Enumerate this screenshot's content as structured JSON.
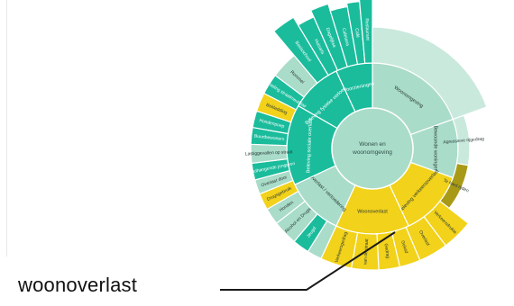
{
  "center": {
    "label_line1": "Wonen en",
    "label_line2": "woonomgeving"
  },
  "callout": {
    "label": "woonoverlast"
  },
  "colors": {
    "teal": "#1abc9c",
    "teal_dark": "#109e82",
    "mint": "#a9dcc9",
    "mint_light": "#c9e9dd",
    "yellow": "#f2d21a",
    "olive": "#a89a16",
    "olive_light": "#d2c676",
    "white": "#ffffff",
    "line": "#1a1a1a"
  },
  "segments": [
    {
      "id": "wijk-level-1",
      "ring": 1,
      "a0": 0,
      "a1": 70,
      "fill": "mint",
      "label": "Woonomgeving",
      "text": "dark"
    },
    {
      "id": "bewoonde-woningen",
      "ring": 1,
      "a0": 70,
      "a1": 110,
      "fill": "mint",
      "label": "Bewoonde woningen",
      "text": "dark"
    },
    {
      "id": "beleving-verkeersoverlast",
      "ring": 1,
      "a0": 110,
      "a1": 155,
      "fill": "yellow",
      "label": "Beleving verkeersoverlast",
      "text": "dark"
    },
    {
      "id": "woonoverlast-level-1",
      "ring": 1,
      "a0": 155,
      "a1": 205,
      "fill": "yellow",
      "label": "Woonoverlast",
      "text": "dark"
    },
    {
      "id": "overlast-verloedering",
      "ring": 1,
      "a0": 205,
      "a1": 245,
      "fill": "mint",
      "label": "Overlast / verloedering",
      "text": "dark"
    },
    {
      "id": "beleving-sociale-overlast",
      "ring": 1,
      "a0": 245,
      "a1": 300,
      "fill": "teal",
      "label": "Beleving sociale overlast",
      "text": "light"
    },
    {
      "id": "beleving-fysieke-verloedering",
      "ring": 1,
      "a0": 300,
      "a1": 335,
      "fill": "teal",
      "label": "Beleving fysieke verloedering",
      "text": "light"
    },
    {
      "id": "voorzieningen",
      "ring": 1,
      "a0": 335,
      "a1": 360,
      "fill": "teal",
      "label": "Voorzieningen",
      "text": "light"
    },
    {
      "id": "agressieve-rijgedrag",
      "ring": 2,
      "a0": 70,
      "a1": 100,
      "fill": "mint_light",
      "label": "Agressieve rijgedrag",
      "text": "dark",
      "outerR": 108
    },
    {
      "id": "te-hard-rijden",
      "ring": 2,
      "a0": 100,
      "a1": 128,
      "fill": "olive",
      "label": "Te hard rijden",
      "text": "dark",
      "outerR": 108
    },
    {
      "id": "verkeersdrukte",
      "ring": 2,
      "a0": 128,
      "a1": 143,
      "fill": "yellow",
      "label": "Verkeersdrukte",
      "text": "dark"
    },
    {
      "id": "overlast-buren",
      "ring": 2,
      "a0": 143,
      "a1": 157,
      "fill": "yellow",
      "label": "Overlast",
      "text": "dark"
    },
    {
      "id": "geluid",
      "ring": 2,
      "a0": 157,
      "a1": 167,
      "fill": "yellow",
      "label": "Geluid",
      "text": "dark"
    },
    {
      "id": "gedrag",
      "ring": 2,
      "a0": 167,
      "a1": 177,
      "fill": "yellow",
      "label": "Gedrag",
      "text": "dark"
    },
    {
      "id": "van-de-straat",
      "ring": 2,
      "a0": 177,
      "a1": 190,
      "fill": "yellow",
      "label": "van de straat",
      "text": "dark"
    },
    {
      "id": "verkeersgedrag",
      "ring": 2,
      "a0": 190,
      "a1": 205,
      "fill": "yellow",
      "label": "Verkeersgedrag",
      "text": "dark"
    },
    {
      "id": "extra-blank",
      "ring": 2,
      "a0": 205,
      "a1": 212,
      "fill": "mint",
      "label": "",
      "text": "dark"
    },
    {
      "id": "jeugd",
      "ring": 2,
      "a0": 212,
      "a1": 220,
      "fill": "teal",
      "label": "Jeugd",
      "text": "light"
    },
    {
      "id": "alcohol-drugs",
      "ring": 2,
      "a0": 220,
      "a1": 232,
      "fill": "mint",
      "label": "Alcohol en Drugs",
      "text": "dark"
    },
    {
      "id": "honden",
      "ring": 2,
      "a0": 232,
      "a1": 240,
      "fill": "mint",
      "label": "Honden",
      "text": "dark"
    },
    {
      "id": "drugsgebruik",
      "ring": 2,
      "a0": 240,
      "a1": 248,
      "fill": "yellow",
      "label": "Drugsgebruik",
      "text": "dark"
    },
    {
      "id": "overlast-buurtbewoners",
      "ring": 2,
      "a0": 248,
      "a1": 255,
      "fill": "mint",
      "label": "Overlast door",
      "text": "dark"
    },
    {
      "id": "rondhangende-jongeren",
      "ring": 2,
      "a0": 255,
      "a1": 263,
      "fill": "teal",
      "label": "Rondhangende jongeren",
      "text": "light"
    },
    {
      "id": "lastiggevallen",
      "ring": 2,
      "a0": 263,
      "a1": 272,
      "fill": "mint",
      "label": "Lastiggevallen op straat",
      "text": "dark"
    },
    {
      "id": "buurtbewoners",
      "ring": 2,
      "a0": 272,
      "a1": 280,
      "fill": "teal",
      "label": "Buurtbewoners",
      "text": "light"
    },
    {
      "id": "hondenpoep",
      "ring": 2,
      "a0": 280,
      "a1": 288,
      "fill": "teal",
      "label": "Hondenpoep",
      "text": "light"
    },
    {
      "id": "bekladding",
      "ring": 2,
      "a0": 288,
      "a1": 297,
      "fill": "yellow",
      "label": "Bekladding",
      "text": "dark"
    },
    {
      "id": "vernieling",
      "ring": 2,
      "a0": 297,
      "a1": 307,
      "fill": "teal",
      "label": "Vernieling straatmeubilair",
      "text": "light"
    },
    {
      "id": "rommel",
      "ring": 2,
      "a0": 307,
      "a1": 320,
      "fill": "mint",
      "label": "Rommel",
      "text": "dark"
    },
    {
      "id": "basisschool",
      "ring": 2,
      "a0": 320,
      "a1": 329,
      "fill": "teal",
      "label": "Basisschool",
      "text": "light",
      "outerR": 170
    },
    {
      "id": "huisarts",
      "ring": 2,
      "a0": 329,
      "a1": 336,
      "fill": "teal",
      "label": "Huisarts",
      "text": "light",
      "outerR": 160
    },
    {
      "id": "dagelijkse",
      "ring": 2,
      "a0": 336,
      "a1": 343,
      "fill": "teal",
      "label": "Dagelijkse",
      "text": "light",
      "outerR": 168
    },
    {
      "id": "cafetaria",
      "ring": 2,
      "a0": 343,
      "a1": 350,
      "fill": "teal",
      "label": "Cafetaria",
      "text": "light",
      "outerR": 160
    },
    {
      "id": "cafe",
      "ring": 2,
      "a0": 350,
      "a1": 355,
      "fill": "teal",
      "label": "Café",
      "text": "light",
      "outerR": 164
    },
    {
      "id": "restaurant",
      "ring": 2,
      "a0": 355,
      "a1": 360,
      "fill": "teal",
      "label": "Restaurant",
      "text": "light",
      "outerR": 170
    },
    {
      "id": "woon-outer",
      "ring": 2,
      "a0": 0,
      "a1": 70,
      "fill": "mint_light",
      "label": "",
      "text": "dark"
    }
  ]
}
